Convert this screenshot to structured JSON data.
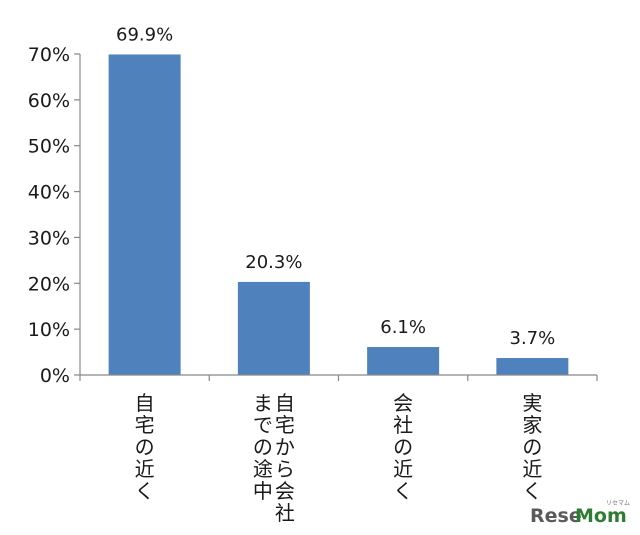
{
  "chart_data": {
    "type": "bar",
    "categories": [
      [
        "自宅の近く"
      ],
      [
        "自宅から会社",
        "までの途中"
      ],
      [
        "会社の近く"
      ],
      [
        "実家の近く"
      ]
    ],
    "values": [
      69.9,
      20.3,
      6.1,
      3.7
    ],
    "data_labels": [
      "69.9%",
      "20.3%",
      "6.1%",
      "3.7%"
    ],
    "y_ticks": [
      "0%",
      "10%",
      "20%",
      "30%",
      "40%",
      "50%",
      "60%",
      "70%"
    ],
    "ylim": [
      0,
      70
    ],
    "bar_color": "#4f81bd",
    "grid": false,
    "legend": "none",
    "title": "",
    "xlabel": "",
    "ylabel": ""
  },
  "watermark": {
    "brand_a": "Rese",
    "brand_b": "Mom",
    "small": "リセマム"
  }
}
